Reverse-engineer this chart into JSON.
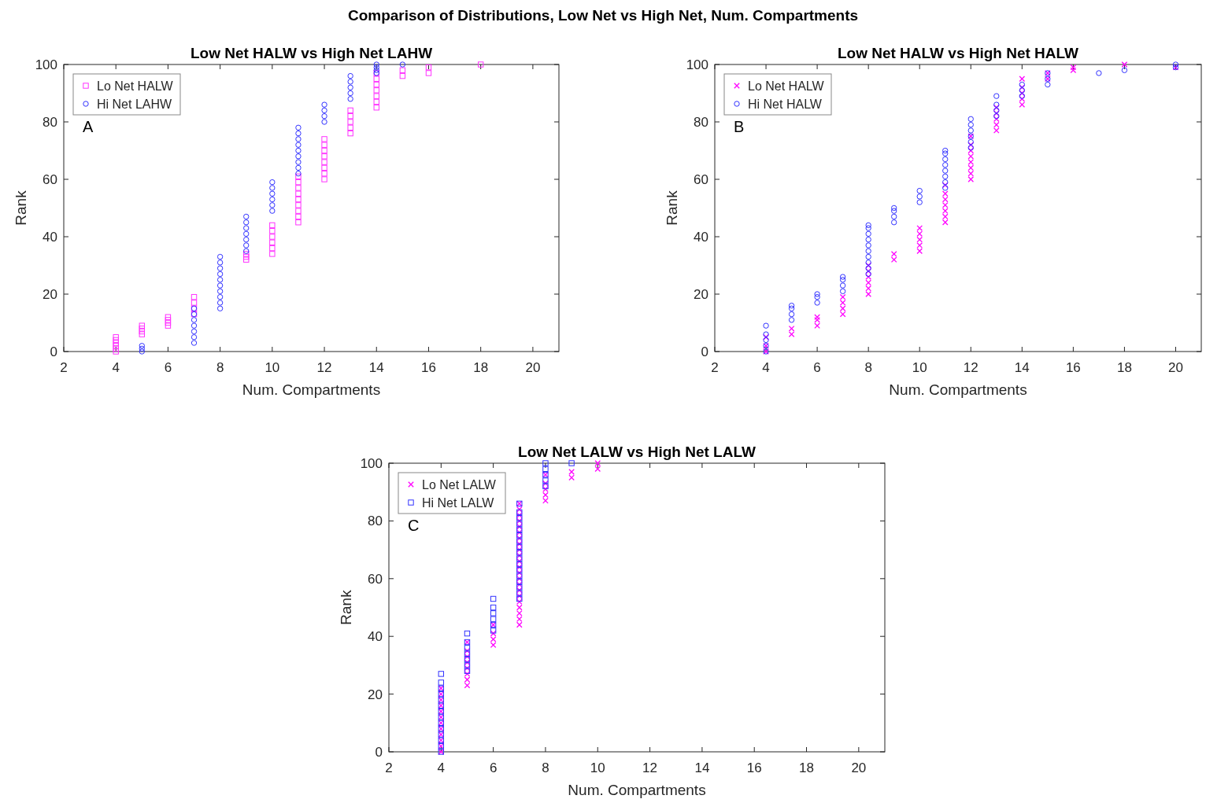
{
  "chart_data": [
    {
      "type": "scatter",
      "title": "Low Net HALW vs High Net LAHW",
      "xlabel": "Num. Compartments",
      "ylabel": "Rank",
      "xlim": [
        2,
        21
      ],
      "xticks": [
        2,
        4,
        6,
        8,
        10,
        12,
        14,
        16,
        18,
        20
      ],
      "ylim": [
        0,
        100
      ],
      "yticks": [
        0,
        20,
        40,
        60,
        80,
        100
      ],
      "grid": false,
      "legend": "top left",
      "annotations": [
        "Comparison of Distributions, Low Net vs High Net, Num. Compartments",
        "A"
      ],
      "series": [
        {
          "name": "Lo Net HALW",
          "color": "#ff33ff",
          "marker": "square",
          "x": [
            4,
            4,
            4,
            4,
            4,
            4,
            5,
            5,
            5,
            5,
            6,
            6,
            6,
            6,
            7,
            7,
            7,
            7,
            9,
            9,
            9,
            10,
            10,
            10,
            10,
            10,
            10,
            11,
            11,
            11,
            11,
            11,
            11,
            11,
            11,
            11,
            12,
            12,
            12,
            12,
            12,
            12,
            12,
            12,
            13,
            13,
            13,
            13,
            13,
            14,
            14,
            14,
            14,
            14,
            14,
            14,
            15,
            15,
            16,
            16,
            18
          ],
          "values": [
            0,
            1,
            2,
            3,
            4,
            5,
            6,
            7,
            8,
            9,
            9,
            10,
            11,
            12,
            13,
            15,
            17,
            19,
            32,
            33,
            34,
            34,
            36,
            38,
            40,
            42,
            44,
            45,
            47,
            49,
            51,
            53,
            55,
            57,
            59,
            61,
            60,
            62,
            64,
            66,
            68,
            70,
            72,
            74,
            76,
            78,
            80,
            82,
            84,
            85,
            87,
            89,
            91,
            93,
            95,
            97,
            96,
            98,
            97,
            99,
            100
          ]
        },
        {
          "name": "Hi Net LAHW",
          "color": "#3333ff",
          "marker": "circle",
          "x": [
            5,
            5,
            5,
            7,
            7,
            7,
            7,
            7,
            7,
            7,
            8,
            8,
            8,
            8,
            8,
            8,
            8,
            8,
            8,
            8,
            9,
            9,
            9,
            9,
            9,
            9,
            9,
            10,
            10,
            10,
            10,
            10,
            10,
            11,
            11,
            11,
            11,
            11,
            11,
            11,
            11,
            11,
            12,
            12,
            12,
            12,
            13,
            13,
            13,
            13,
            13,
            14,
            14,
            14,
            14,
            15
          ],
          "values": [
            0,
            1,
            2,
            3,
            5,
            7,
            9,
            11,
            13,
            15,
            15,
            17,
            19,
            21,
            23,
            25,
            27,
            29,
            31,
            33,
            35,
            37,
            39,
            41,
            43,
            45,
            47,
            49,
            51,
            53,
            55,
            57,
            59,
            62,
            64,
            66,
            68,
            70,
            72,
            74,
            76,
            78,
            80,
            82,
            84,
            86,
            88,
            90,
            92,
            94,
            96,
            97,
            98,
            99,
            100,
            100
          ]
        }
      ]
    },
    {
      "type": "scatter",
      "title": "Low Net HALW vs High Net HALW",
      "xlabel": "Num. Compartments",
      "ylabel": "Rank",
      "xlim": [
        2,
        21
      ],
      "xticks": [
        2,
        4,
        6,
        8,
        10,
        12,
        14,
        16,
        18,
        20
      ],
      "ylim": [
        0,
        100
      ],
      "yticks": [
        0,
        20,
        40,
        60,
        80,
        100
      ],
      "grid": false,
      "legend": "top left",
      "annotations": [
        "B"
      ],
      "series": [
        {
          "name": "Lo Net HALW",
          "color": "#ff00ff",
          "marker": "cross",
          "x": [
            4,
            4,
            4,
            5,
            5,
            6,
            6,
            6,
            7,
            7,
            7,
            7,
            8,
            8,
            8,
            8,
            8,
            8,
            9,
            9,
            10,
            10,
            10,
            10,
            10,
            11,
            11,
            11,
            11,
            11,
            11,
            11,
            12,
            12,
            12,
            12,
            12,
            12,
            12,
            12,
            13,
            13,
            13,
            13,
            13,
            14,
            14,
            14,
            14,
            14,
            15,
            15,
            16,
            16,
            18,
            20
          ],
          "values": [
            0,
            2,
            5,
            6,
            8,
            9,
            11,
            12,
            13,
            15,
            17,
            19,
            20,
            22,
            24,
            26,
            28,
            30,
            32,
            34,
            35,
            37,
            39,
            41,
            43,
            45,
            47,
            49,
            51,
            53,
            55,
            58,
            60,
            62,
            64,
            66,
            68,
            70,
            72,
            75,
            77,
            79,
            81,
            83,
            85,
            86,
            88,
            90,
            92,
            95,
            95,
            97,
            98,
            99,
            100,
            99
          ]
        },
        {
          "name": "Hi Net HALW",
          "color": "#3333ff",
          "marker": "circle",
          "x": [
            4,
            4,
            4,
            4,
            4,
            5,
            5,
            5,
            5,
            6,
            6,
            6,
            7,
            7,
            7,
            7,
            8,
            8,
            8,
            8,
            8,
            8,
            8,
            8,
            8,
            8,
            9,
            9,
            9,
            9,
            10,
            10,
            10,
            11,
            11,
            11,
            11,
            11,
            11,
            11,
            11,
            12,
            12,
            12,
            12,
            12,
            12,
            13,
            13,
            13,
            13,
            14,
            14,
            14,
            15,
            15,
            15,
            17,
            18,
            20,
            20
          ],
          "values": [
            0,
            2,
            4,
            6,
            9,
            11,
            13,
            15,
            16,
            17,
            19,
            20,
            21,
            23,
            25,
            26,
            27,
            29,
            31,
            33,
            35,
            37,
            39,
            41,
            43,
            44,
            45,
            47,
            49,
            50,
            52,
            54,
            56,
            57,
            59,
            61,
            63,
            65,
            67,
            69,
            70,
            71,
            73,
            75,
            77,
            79,
            81,
            82,
            84,
            86,
            89,
            89,
            91,
            93,
            93,
            95,
            97,
            97,
            98,
            99,
            100
          ]
        }
      ]
    },
    {
      "type": "scatter",
      "title": "Low Net LALW vs High Net LALW",
      "xlabel": "Num. Compartments",
      "ylabel": "Rank",
      "xlim": [
        2,
        21
      ],
      "xticks": [
        2,
        4,
        6,
        8,
        10,
        12,
        14,
        16,
        18,
        20
      ],
      "ylim": [
        0,
        100
      ],
      "yticks": [
        0,
        20,
        40,
        60,
        80,
        100
      ],
      "grid": false,
      "legend": "top left",
      "annotations": [
        "C"
      ],
      "series": [
        {
          "name": "Lo Net LALW",
          "color": "#ff00ff",
          "marker": "cross",
          "x": [
            4,
            4,
            4,
            4,
            4,
            4,
            4,
            4,
            4,
            4,
            4,
            4,
            5,
            5,
            5,
            5,
            5,
            5,
            5,
            5,
            6,
            6,
            6,
            6,
            7,
            7,
            7,
            7,
            7,
            7,
            7,
            7,
            7,
            7,
            7,
            7,
            7,
            7,
            7,
            7,
            7,
            7,
            7,
            7,
            7,
            7,
            8,
            8,
            8,
            8,
            8,
            9,
            9,
            10,
            10
          ],
          "values": [
            0,
            2,
            4,
            6,
            8,
            10,
            12,
            14,
            16,
            18,
            20,
            22,
            23,
            25,
            27,
            29,
            31,
            33,
            35,
            38,
            37,
            39,
            41,
            44,
            44,
            46,
            48,
            50,
            52,
            54,
            56,
            58,
            60,
            62,
            64,
            66,
            68,
            70,
            72,
            74,
            76,
            78,
            80,
            82,
            84,
            86,
            87,
            89,
            91,
            93,
            96,
            95,
            97,
            98,
            100
          ]
        },
        {
          "name": "Hi Net LALW",
          "color": "#3333ff",
          "marker": "square",
          "x": [
            4,
            4,
            4,
            4,
            4,
            4,
            4,
            4,
            4,
            4,
            4,
            4,
            4,
            4,
            5,
            5,
            5,
            5,
            5,
            5,
            5,
            6,
            6,
            6,
            6,
            6,
            6,
            7,
            7,
            7,
            7,
            7,
            7,
            7,
            7,
            7,
            7,
            7,
            7,
            7,
            7,
            7,
            7,
            7,
            8,
            8,
            8,
            8,
            8,
            9
          ],
          "values": [
            0,
            2,
            4,
            6,
            8,
            10,
            12,
            14,
            16,
            18,
            20,
            22,
            24,
            27,
            28,
            30,
            32,
            34,
            36,
            38,
            41,
            42,
            44,
            46,
            48,
            50,
            53,
            53,
            55,
            57,
            59,
            61,
            63,
            65,
            67,
            69,
            71,
            73,
            75,
            77,
            79,
            81,
            83,
            86,
            92,
            94,
            96,
            98,
            100,
            100
          ]
        }
      ]
    }
  ]
}
